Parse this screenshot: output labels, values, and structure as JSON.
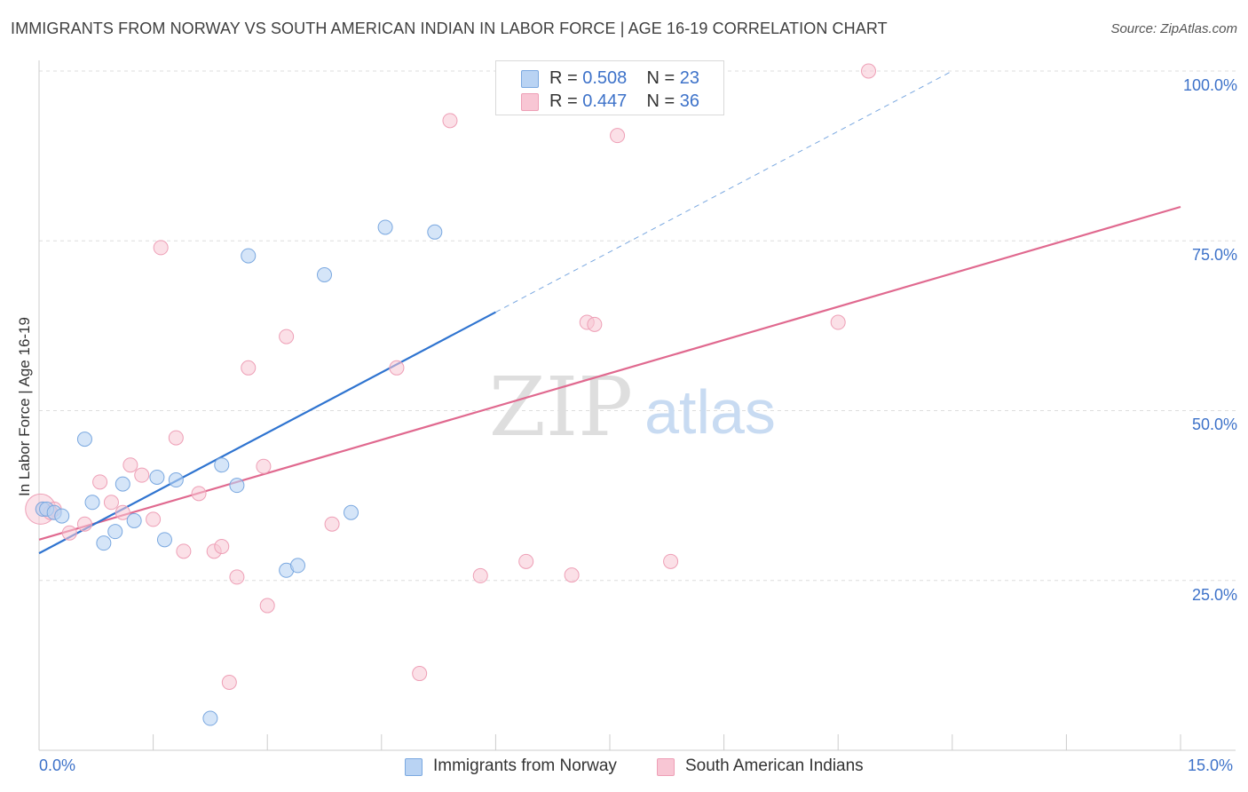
{
  "title": "IMMIGRANTS FROM NORWAY VS SOUTH AMERICAN INDIAN IN LABOR FORCE | AGE 16-19 CORRELATION CHART",
  "source": "Source: ZipAtlas.com",
  "watermark": {
    "zip": "ZIP",
    "atlas": "atlas"
  },
  "colors": {
    "blue_fill": "#b9d3f3",
    "blue_stroke": "#7aa8e0",
    "blue_line": "#2f74d0",
    "pink_fill": "#f8c6d4",
    "pink_stroke": "#ee9fb6",
    "pink_line": "#e0698f",
    "tick_blue": "#3d72c9",
    "grid": "#dddddd"
  },
  "legend_top": {
    "series1": {
      "r_label": "R = ",
      "r_value": "0.508",
      "n_label": "N = ",
      "n_value": "23"
    },
    "series2": {
      "r_label": "R = ",
      "r_value": "0.447",
      "n_label": "N = ",
      "n_value": "36"
    }
  },
  "chart_data": {
    "type": "scatter",
    "title": "IMMIGRANTS FROM NORWAY VS SOUTH AMERICAN INDIAN IN LABOR FORCE | AGE 16-19 CORRELATION CHART",
    "xlabel": "",
    "ylabel": "In Labor Force | Age 16-19",
    "xlim": [
      0,
      15
    ],
    "ylim": [
      0,
      100
    ],
    "x_tick_labels": [
      "0.0%",
      "15.0%"
    ],
    "y_ticks": [
      25,
      50,
      75,
      100
    ],
    "y_tick_labels": [
      "25.0%",
      "50.0%",
      "75.0%",
      "100.0%"
    ],
    "series": [
      {
        "name": "Immigrants from Norway",
        "color": "#b9d3f3",
        "points": [
          [
            0.05,
            35.5
          ],
          [
            0.1,
            35.5
          ],
          [
            0.2,
            35.0
          ],
          [
            0.3,
            34.5
          ],
          [
            0.6,
            45.8
          ],
          [
            0.7,
            36.5
          ],
          [
            0.85,
            30.5
          ],
          [
            1.0,
            32.2
          ],
          [
            1.1,
            39.2
          ],
          [
            1.25,
            33.8
          ],
          [
            1.55,
            40.2
          ],
          [
            1.65,
            31.0
          ],
          [
            1.8,
            39.8
          ],
          [
            2.25,
            4.7
          ],
          [
            2.4,
            42.0
          ],
          [
            2.6,
            39.0
          ],
          [
            2.75,
            72.8
          ],
          [
            3.25,
            26.5
          ],
          [
            3.4,
            27.2
          ],
          [
            3.75,
            70.0
          ],
          [
            4.1,
            35.0
          ],
          [
            4.55,
            77.0
          ],
          [
            5.2,
            76.3
          ]
        ],
        "trend": {
          "x0": 0,
          "y0": 29.0,
          "x1": 6.0,
          "y1": 64.5,
          "dash_to_x": 12.0,
          "dash_to_y": 100
        }
      },
      {
        "name": "South American Indians",
        "color": "#f8c6d4",
        "points": [
          [
            0.05,
            35.5
          ],
          [
            0.2,
            35.5
          ],
          [
            0.4,
            32.0
          ],
          [
            0.6,
            33.3
          ],
          [
            0.8,
            39.5
          ],
          [
            0.95,
            36.5
          ],
          [
            1.1,
            35.0
          ],
          [
            1.2,
            42.0
          ],
          [
            1.35,
            40.5
          ],
          [
            1.5,
            34.0
          ],
          [
            1.6,
            74.0
          ],
          [
            1.8,
            46.0
          ],
          [
            1.9,
            29.3
          ],
          [
            2.1,
            37.8
          ],
          [
            2.3,
            29.3
          ],
          [
            2.4,
            30.0
          ],
          [
            2.5,
            10.0
          ],
          [
            2.6,
            25.5
          ],
          [
            2.75,
            56.3
          ],
          [
            2.95,
            41.8
          ],
          [
            3.0,
            21.3
          ],
          [
            3.25,
            60.9
          ],
          [
            3.85,
            33.3
          ],
          [
            4.7,
            56.3
          ],
          [
            5.0,
            11.3
          ],
          [
            5.4,
            92.7
          ],
          [
            5.8,
            25.7
          ],
          [
            6.4,
            27.8
          ],
          [
            7.0,
            25.8
          ],
          [
            7.2,
            63.0
          ],
          [
            7.3,
            62.7
          ],
          [
            7.6,
            90.5
          ],
          [
            8.3,
            27.8
          ],
          [
            10.5,
            63.0
          ],
          [
            10.9,
            100.0
          ],
          [
            0.15,
            35.0
          ]
        ],
        "trend": {
          "x0": 0,
          "y0": 31.0,
          "x1": 15.0,
          "y1": 80.0
        }
      }
    ],
    "legend": [
      "Immigrants from Norway",
      "South American Indians"
    ],
    "legend_position": "bottom-center",
    "stats_box_position": "top-center",
    "grid": true
  }
}
